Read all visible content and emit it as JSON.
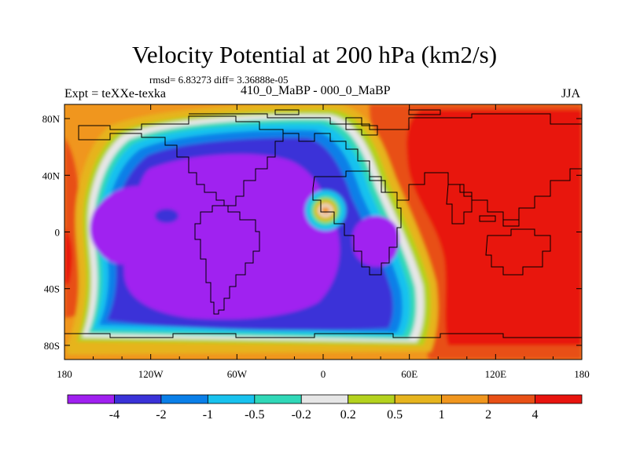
{
  "title": "Velocity Potential at 200 hPa (km2/s)",
  "stats": "rmsd= 6.83273 diff= 3.36888e-05",
  "left_label": "Expt = teXXe-texka",
  "center_label": "410_0_MaBP - 000_0_MaBP",
  "right_label": "JJA",
  "chart_data": {
    "type": "contour-map",
    "variable": "Velocity Potential",
    "level": "200 hPa",
    "units": "km2/s",
    "x_range": [
      -180,
      180
    ],
    "y_range": [
      -90,
      90
    ],
    "xticks": [
      {
        "value": -180,
        "label": "180"
      },
      {
        "value": -120,
        "label": "120W"
      },
      {
        "value": -60,
        "label": "60W"
      },
      {
        "value": 0,
        "label": "0"
      },
      {
        "value": 60,
        "label": "60E"
      },
      {
        "value": 120,
        "label": "120E"
      },
      {
        "value": 180,
        "label": "180"
      }
    ],
    "yticks": [
      {
        "value": 80,
        "label": "80N"
      },
      {
        "value": 40,
        "label": "40N"
      },
      {
        "value": 0,
        "label": "0"
      },
      {
        "value": -40,
        "label": "40S"
      },
      {
        "value": -80,
        "label": "80S"
      }
    ],
    "levels": [
      {
        "label": "-4",
        "color": "#a020f0"
      },
      {
        "label": "-2",
        "color": "#3a32d8"
      },
      {
        "label": "-1",
        "color": "#0a7fe8"
      },
      {
        "label": "-0.5",
        "color": "#18c2ee"
      },
      {
        "label": "-0.2",
        "color": "#30d8b8"
      },
      {
        "label": "0.2",
        "color": "#e6e6e6"
      },
      {
        "label": "0.5",
        "color": "#b4d21e"
      },
      {
        "label": "1",
        "color": "#e6b41e"
      },
      {
        "label": "2",
        "color": "#f0961e"
      },
      {
        "label": "4",
        "color": "#e85016"
      },
      {
        "label": "",
        "color": "#e8140e"
      }
    ],
    "features": [
      {
        "name": "negative centre over South America / Atlantic",
        "lon": -70,
        "lat": 5,
        "value": "< -4"
      },
      {
        "name": "secondary negative centre over Africa",
        "lon": 50,
        "lat": 3,
        "value": "< -4"
      },
      {
        "name": "positive dipole off northwest Africa",
        "lon": 2,
        "lat": 15,
        "value": "> 1"
      },
      {
        "name": "positive centre over Asia / Indian Ocean",
        "lon": 125,
        "lat": 15,
        "value": "> 4"
      },
      {
        "name": "positive anomaly west Pacific edge",
        "lon": -178,
        "lat": -20,
        "value": "> 2"
      }
    ]
  }
}
